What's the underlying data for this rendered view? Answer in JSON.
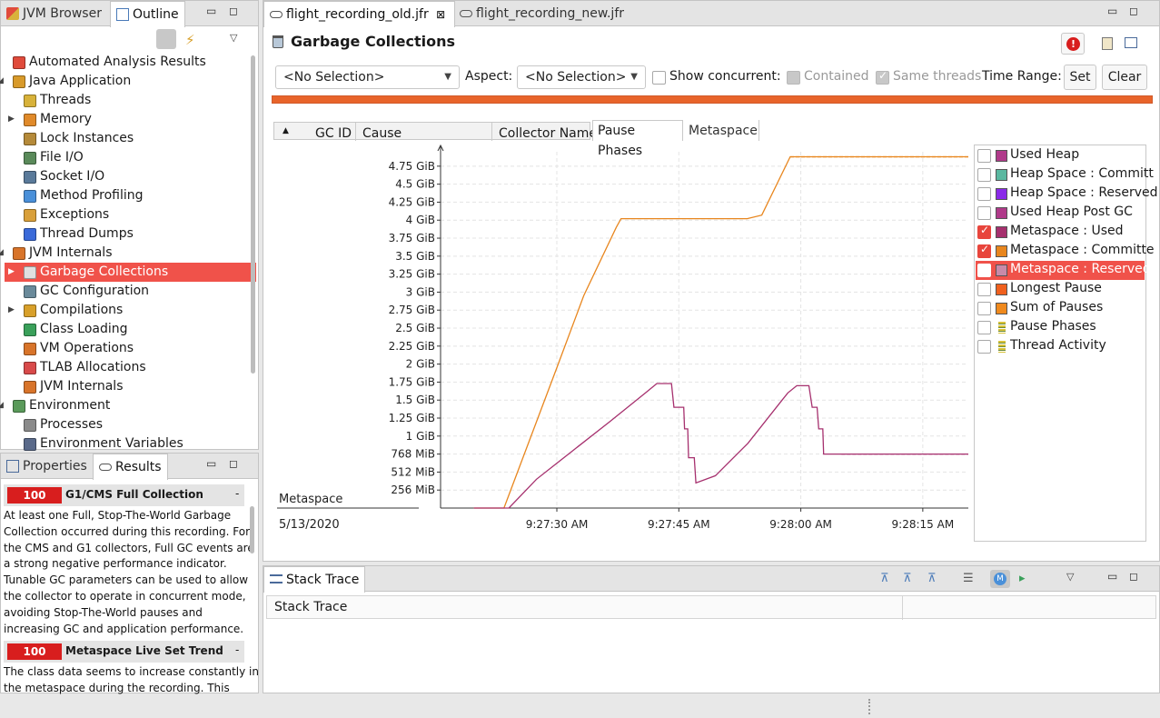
{
  "left_top_tabs": [
    {
      "label": "JVM Browser",
      "icon": "jvm-browser-icon"
    },
    {
      "label": "Outline",
      "icon": "outline-icon"
    }
  ],
  "outline": {
    "items": [
      {
        "label": "Automated Analysis Results",
        "level": 0,
        "icon": "analysis-icon",
        "color": "#e04b3b"
      },
      {
        "label": "Java Application",
        "level": 0,
        "expand": "expanded",
        "icon": "java-app-icon",
        "color": "#d89a2a"
      },
      {
        "label": "Threads",
        "level": 1,
        "icon": "threads-icon",
        "color": "#d8b23a"
      },
      {
        "label": "Memory",
        "level": 1,
        "expand": "collapsed",
        "icon": "memory-icon",
        "color": "#e08a2a"
      },
      {
        "label": "Lock Instances",
        "level": 1,
        "icon": "lock-icon",
        "color": "#b58a3a"
      },
      {
        "label": "File I/O",
        "level": 1,
        "icon": "file-io-icon",
        "color": "#5a8a5a"
      },
      {
        "label": "Socket I/O",
        "level": 1,
        "icon": "socket-io-icon",
        "color": "#5a7a9a"
      },
      {
        "label": "Method Profiling",
        "level": 1,
        "icon": "method-profiling-icon",
        "color": "#4a90d9"
      },
      {
        "label": "Exceptions",
        "level": 1,
        "icon": "exceptions-icon",
        "color": "#d9a03a"
      },
      {
        "label": "Thread Dumps",
        "level": 1,
        "icon": "thread-dumps-icon",
        "color": "#3a6ad9"
      },
      {
        "label": "JVM Internals",
        "level": 0,
        "expand": "expanded",
        "icon": "jvm-internals-icon",
        "color": "#d8742a"
      },
      {
        "label": "Garbage Collections",
        "level": 1,
        "selected": true,
        "expand": "collapsed",
        "icon": "trash-icon",
        "color": "#e0e0e0"
      },
      {
        "label": "GC Configuration",
        "level": 1,
        "icon": "gc-config-icon",
        "color": "#6a8a9a"
      },
      {
        "label": "Compilations",
        "level": 1,
        "expand": "collapsed",
        "icon": "compilations-icon",
        "color": "#d8a02a"
      },
      {
        "label": "Class Loading",
        "level": 1,
        "icon": "class-loading-icon",
        "color": "#3aa05a"
      },
      {
        "label": "VM Operations",
        "level": 1,
        "icon": "vm-operations-icon",
        "color": "#d8742a"
      },
      {
        "label": "TLAB Allocations",
        "level": 1,
        "icon": "tlab-icon",
        "color": "#d84a4a"
      },
      {
        "label": "JVM Internals",
        "level": 1,
        "icon": "jvm-internals-sub-icon",
        "color": "#d8742a"
      },
      {
        "label": "Environment",
        "level": 0,
        "expand": "expanded",
        "icon": "environment-icon",
        "color": "#5a9a5a"
      },
      {
        "label": "Processes",
        "level": 1,
        "icon": "processes-icon",
        "color": "#8a8a8a"
      },
      {
        "label": "Environment Variables",
        "level": 1,
        "icon": "env-vars-icon",
        "color": "#5a6a8a"
      }
    ]
  },
  "left_bottom_tabs": [
    {
      "label": "Properties",
      "icon": "properties-icon"
    },
    {
      "label": "Results",
      "icon": "results-icon"
    }
  ],
  "results": [
    {
      "score": "100",
      "title": "G1/CMS Full Collection",
      "toggle": "-",
      "lines": [
        "At least one Full, Stop-The-World Garbage",
        "Collection occurred during this recording. For",
        "the CMS and G1 collectors, Full GC events are",
        "a strong negative performance indicator.",
        "Tunable GC parameters can be used to allow",
        "the collector to operate in concurrent mode,",
        "avoiding Stop-The-World pauses and",
        "increasing GC and application performance."
      ]
    },
    {
      "score": "100",
      "title": "Metaspace Live Set Trend",
      "toggle": "-",
      "lines": [
        "The class data seems to increase constantly in",
        "the metaspace during the recording. This"
      ]
    }
  ],
  "editor_tabs": [
    {
      "label": "flight_recording_old.jfr",
      "active": true,
      "close": "⊠"
    },
    {
      "label": "flight_recording_new.jfr",
      "active": false
    }
  ],
  "page": {
    "title": "Garbage Collections",
    "selection_combo": "<No Selection>",
    "aspect_label": "Aspect:",
    "aspect_combo": "<No Selection>",
    "show_concurrent": "Show concurrent:",
    "contained": "Contained",
    "same_threads": "Same threads",
    "time_range": "Time Range:",
    "set": "Set",
    "clear": "Clear",
    "range_bar_color": "#e8642a"
  },
  "table": {
    "columns": [
      "GC ID",
      "Cause",
      "Collector Name"
    ],
    "sort_indicator": "▲"
  },
  "chart_tabs": [
    {
      "label": "Pause Phases",
      "active": true
    },
    {
      "label": "Metaspace",
      "active": false
    }
  ],
  "chart_footer": {
    "label": "Metaspace",
    "date": "5/13/2020"
  },
  "chart_data": {
    "type": "line",
    "y_ticks": [
      "256 MiB",
      "512 MiB",
      "768 MiB",
      "1 GiB",
      "1.25 GiB",
      "1.5 GiB",
      "1.75 GiB",
      "2 GiB",
      "2.25 GiB",
      "2.5 GiB",
      "2.75 GiB",
      "3 GiB",
      "3.25 GiB",
      "3.5 GiB",
      "3.75 GiB",
      "4 GiB",
      "4.25 GiB",
      "4.5 GiB",
      "4.75 GiB"
    ],
    "x_ticks": [
      "9:27:30 AM",
      "9:27:45 AM",
      "9:28:00 AM",
      "9:28:15 AM"
    ],
    "x_tick_seconds": [
      30,
      45,
      60,
      75
    ],
    "x_range": [
      15.7,
      80.6
    ],
    "y_range_gib": [
      0,
      4.95
    ],
    "series": [
      {
        "name": "Metaspace : Committed",
        "color": "#e8861e",
        "points": [
          [
            19.8,
            0.0
          ],
          [
            23.5,
            0.0
          ],
          [
            25.5,
            0.6
          ],
          [
            30.0,
            1.95
          ],
          [
            33.3,
            2.95
          ],
          [
            37.3,
            3.9
          ],
          [
            37.9,
            4.02
          ],
          [
            53.4,
            4.02
          ],
          [
            55.2,
            4.07
          ],
          [
            58.7,
            4.88
          ],
          [
            80.6,
            4.88
          ]
        ]
      },
      {
        "name": "Metaspace : Used",
        "color": "#a6306e",
        "points": [
          [
            19.8,
            0.0
          ],
          [
            24.1,
            0.0
          ],
          [
            27.5,
            0.4
          ],
          [
            32.0,
            0.8
          ],
          [
            36.5,
            1.2
          ],
          [
            40.9,
            1.6
          ],
          [
            42.3,
            1.73
          ],
          [
            44.1,
            1.73
          ],
          [
            44.4,
            1.4
          ],
          [
            45.6,
            1.4
          ],
          [
            45.7,
            1.1
          ],
          [
            46.1,
            1.1
          ],
          [
            46.2,
            0.7
          ],
          [
            46.9,
            0.7
          ],
          [
            47.1,
            0.35
          ],
          [
            49.5,
            0.45
          ],
          [
            53.5,
            0.9
          ],
          [
            57.7,
            1.5
          ],
          [
            58.4,
            1.6
          ],
          [
            59.5,
            1.7
          ],
          [
            61.0,
            1.7
          ],
          [
            61.4,
            1.4
          ],
          [
            62.0,
            1.4
          ],
          [
            62.2,
            1.1
          ],
          [
            62.7,
            1.1
          ],
          [
            62.8,
            0.75
          ],
          [
            65.0,
            0.75
          ],
          [
            80.6,
            0.75
          ]
        ]
      }
    ]
  },
  "legend": [
    {
      "label": "Used Heap",
      "checked": false,
      "color": "#b03a8a"
    },
    {
      "label": "Heap Space : Committ",
      "checked": false,
      "color": "#5ab8a0"
    },
    {
      "label": "Heap Space : Reserved",
      "checked": false,
      "color": "#8a2ae8"
    },
    {
      "label": "Used Heap Post GC",
      "checked": false,
      "color": "#b03a8a"
    },
    {
      "label": "Metaspace : Used",
      "checked": true,
      "color": "#a6306e"
    },
    {
      "label": "Metaspace : Committe",
      "checked": true,
      "color": "#e8861e"
    },
    {
      "label": "Metaspace : Reserved",
      "checked": false,
      "color": "#c88aa8",
      "selected": true
    },
    {
      "label": "Longest Pause",
      "checked": false,
      "color": "#f0601e"
    },
    {
      "label": "Sum of Pauses",
      "checked": false,
      "color": "#f08a1e"
    },
    {
      "label": "Pause Phases",
      "checked": false,
      "color": "#d8c23a",
      "striped": true
    },
    {
      "label": "Thread Activity",
      "checked": false,
      "color": "#d8c23a",
      "striped": true
    }
  ],
  "stack_trace": {
    "tab": "Stack Trace",
    "header": "Stack Trace"
  }
}
